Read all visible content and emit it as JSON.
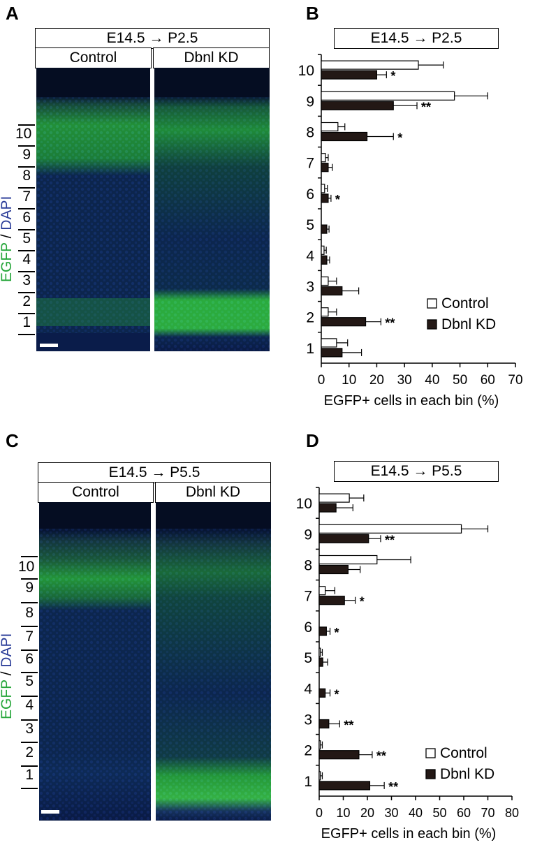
{
  "panels": {
    "A": {
      "letter": "A",
      "condition": "E14.5 → P2.5",
      "col1": "Control",
      "col2": "Dbnl KD"
    },
    "B": {
      "letter": "B",
      "condition": "E14.5 →  P2.5"
    },
    "C": {
      "letter": "C",
      "condition": "E14.5 → P5.5",
      "col1": "Control",
      "col2": "Dbnl KD"
    },
    "D": {
      "letter": "D",
      "condition": "E14.5 →  P5.5"
    }
  },
  "stain": {
    "egfp": "EGFP",
    "sep": " / ",
    "dapi": "DAPI"
  },
  "bins": [
    "10",
    "9",
    "8",
    "7",
    "6",
    "5",
    "4",
    "3",
    "2",
    "1"
  ],
  "colors": {
    "egfp": "#2fc43a",
    "dapi": "#203a9a",
    "kd_bar": "#231815",
    "control_bar": "#ffffff"
  },
  "chart_data": [
    {
      "type": "bar",
      "orientation": "horizontal",
      "title": "E14.5 →  P2.5",
      "xlabel": "EGFP+ cells in each bin (%)",
      "xlim": [
        0,
        70
      ],
      "xticks": [
        "0",
        "10",
        "20",
        "30",
        "40",
        "50",
        "60",
        "70"
      ],
      "categories": [
        "10",
        "9",
        "8",
        "7",
        "6",
        "5",
        "4",
        "3",
        "2",
        "1"
      ],
      "series": [
        {
          "name": "Control",
          "values": [
            35,
            48,
            6,
            1.5,
            1.2,
            0,
            1,
            2.5,
            2.5,
            5.5
          ],
          "errors": [
            9,
            12,
            2.5,
            1,
            1,
            0,
            0.8,
            3,
            3,
            4
          ]
        },
        {
          "name": "Dbnl KD",
          "values": [
            20,
            26,
            16.5,
            2.5,
            2.5,
            2,
            2,
            7.5,
            16,
            7.5
          ],
          "errors": [
            3.5,
            8.5,
            9.5,
            1.5,
            1,
            0.8,
            1,
            6,
            5.5,
            7
          ]
        }
      ],
      "significance": [
        "*",
        "**",
        "*",
        "",
        "*",
        "",
        "",
        "",
        "**",
        ""
      ],
      "legend": {
        "position": "bottom-right"
      }
    },
    {
      "type": "bar",
      "orientation": "horizontal",
      "title": "E14.5 →  P5.5",
      "xlabel": "EGFP+ cells in each bin (%)",
      "xlim": [
        0,
        80
      ],
      "xticks": [
        "0",
        "10",
        "20",
        "30",
        "40",
        "50",
        "60",
        "70",
        "80"
      ],
      "categories": [
        "10",
        "9",
        "8",
        "7",
        "6",
        "5",
        "4",
        "3",
        "2",
        "1"
      ],
      "series": [
        {
          "name": "Control",
          "values": [
            12.5,
            59,
            24,
            2.5,
            0,
            0.5,
            0,
            0,
            0.5,
            0.5
          ],
          "errors": [
            6,
            11,
            14,
            4,
            0,
            0.8,
            0,
            0,
            0.8,
            0.8
          ]
        },
        {
          "name": "Dbnl KD",
          "values": [
            7,
            20.5,
            12,
            10.5,
            3,
            1.5,
            2.5,
            4,
            16.5,
            21
          ],
          "errors": [
            7,
            5,
            5,
            4.5,
            1.5,
            2,
            2,
            4.5,
            5.5,
            6
          ]
        }
      ],
      "significance": [
        "",
        "**",
        "",
        "*",
        "*",
        "",
        "*",
        "**",
        "**",
        "**"
      ],
      "legend": {
        "position": "bottom-right"
      }
    }
  ]
}
